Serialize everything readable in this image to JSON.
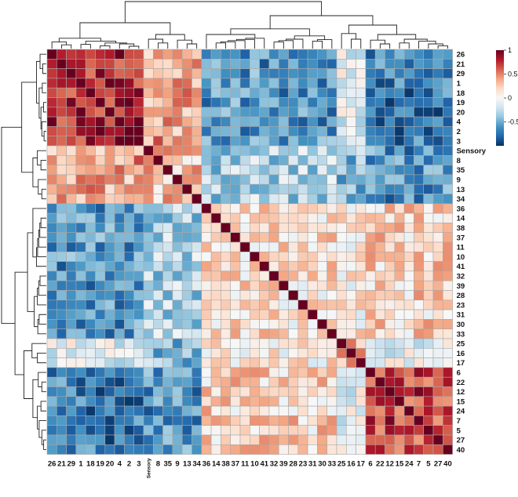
{
  "chart_data": {
    "type": "heatmap",
    "title": "",
    "labels": [
      "26",
      "21",
      "29",
      "1",
      "18",
      "19",
      "20",
      "4",
      "2",
      "3",
      "Sensory",
      "8",
      "35",
      "9",
      "13",
      "34",
      "36",
      "14",
      "38",
      "37",
      "11",
      "10",
      "41",
      "32",
      "39",
      "28",
      "23",
      "31",
      "30",
      "33",
      "25",
      "16",
      "17",
      "6",
      "22",
      "12",
      "15",
      "24",
      "7",
      "5",
      "27",
      "40"
    ],
    "group_sizes": [
      10,
      6,
      14,
      3,
      9
    ],
    "group_correlation": [
      [
        0.8,
        0.4,
        -0.6,
        -0.1,
        -0.7
      ],
      [
        0.4,
        0.3,
        -0.3,
        -0.4,
        -0.6
      ],
      [
        -0.6,
        -0.3,
        0.15,
        0.1,
        0.2
      ],
      [
        -0.1,
        -0.4,
        0.1,
        0.3,
        -0.1
      ],
      [
        -0.7,
        -0.6,
        0.2,
        -0.1,
        0.7
      ]
    ],
    "diagonal": 1,
    "colorbar": {
      "range": [
        -1,
        1
      ],
      "ticks": [
        "1",
        "0.5",
        "0",
        "-0.5"
      ],
      "tick_values": [
        1,
        0.5,
        0,
        -0.5
      ],
      "colors": [
        "#053061",
        "#2166ac",
        "#4393c3",
        "#92c5de",
        "#d1e5f0",
        "#f7f7f7",
        "#fddbc7",
        "#f4a582",
        "#d6604d",
        "#b2182b",
        "#67001f"
      ]
    },
    "cell_border_color": "#a9a9a9",
    "dendrogram_color": "#222222"
  }
}
